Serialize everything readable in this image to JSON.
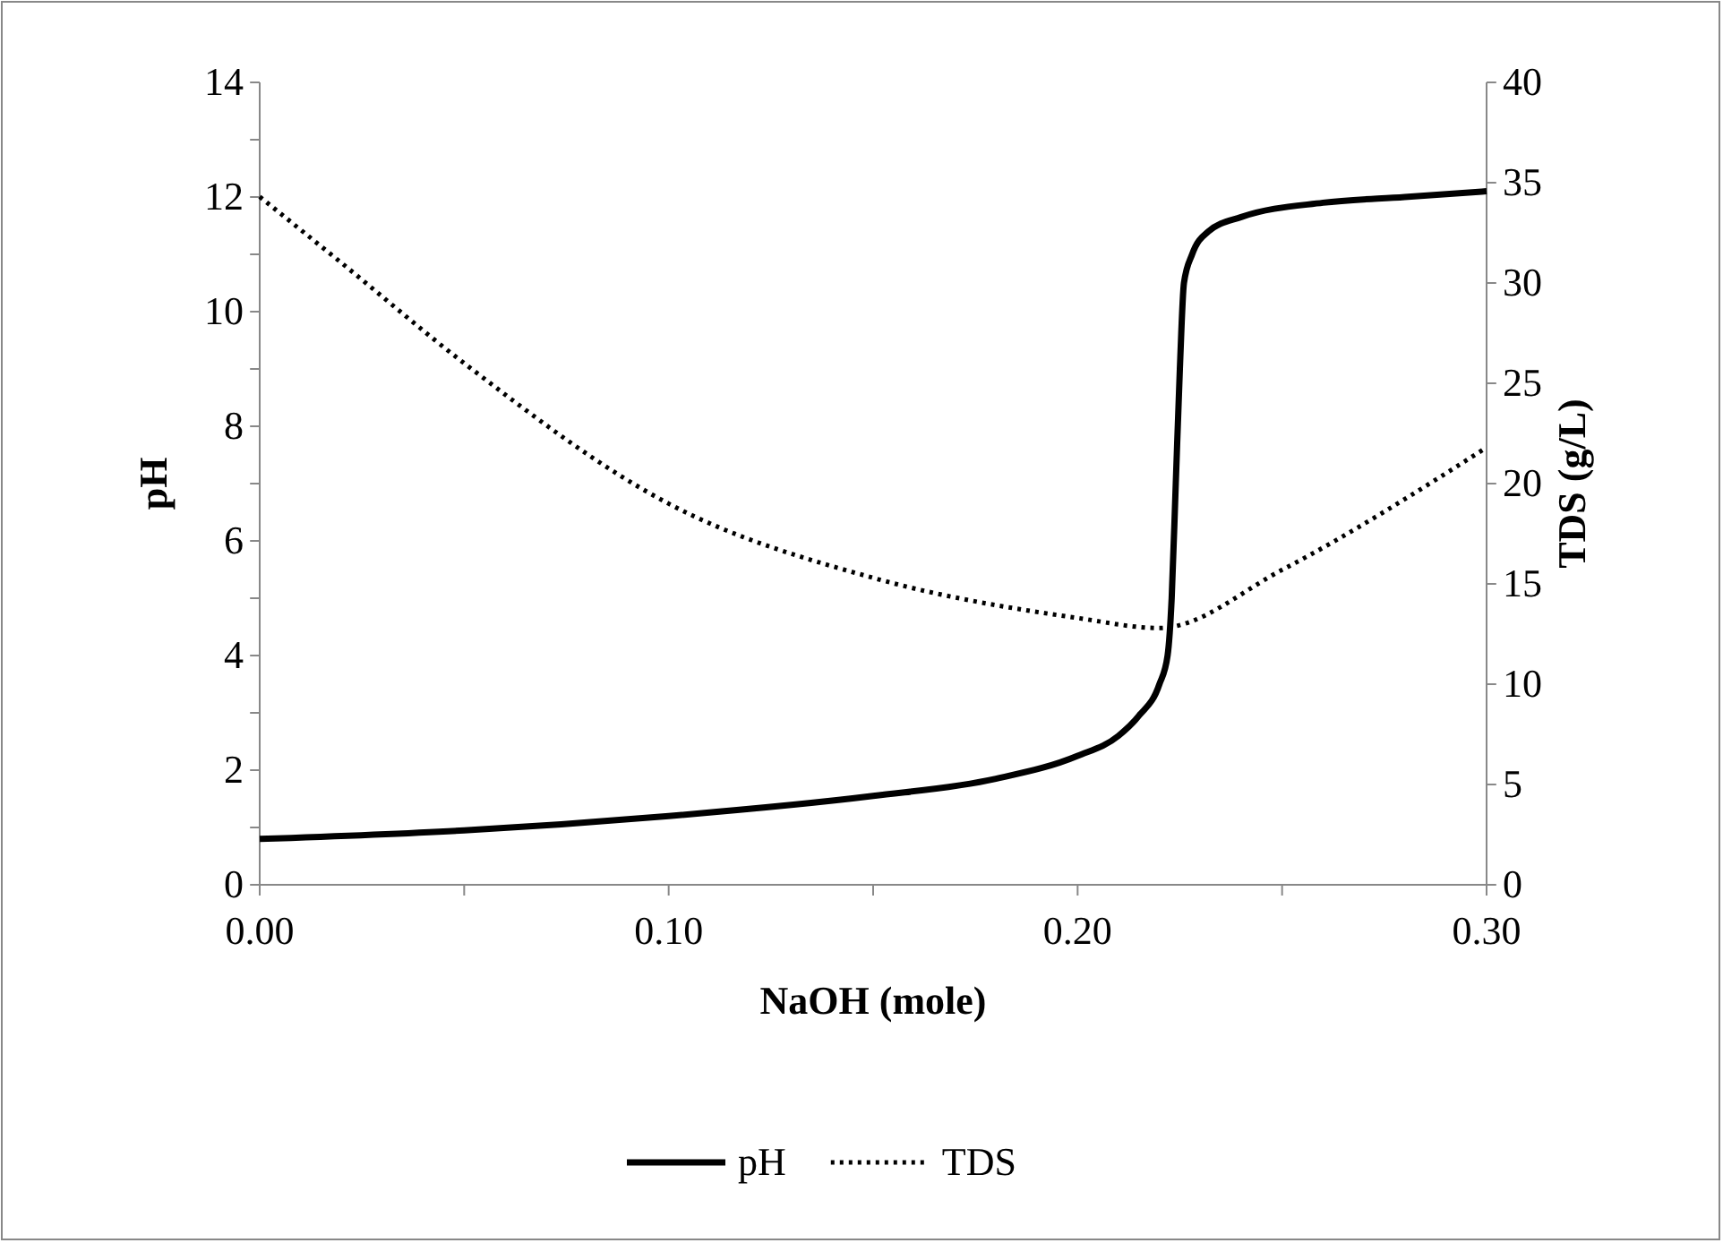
{
  "chart_data": {
    "type": "line",
    "xlabel": "NaOH (mole)",
    "ylabel": "pH",
    "y2label": "TDS (g/L)",
    "xlim": [
      0,
      0.3
    ],
    "xticks": [
      {
        "value": 0,
        "label": "0.00"
      },
      {
        "value": 0.05,
        "label": null
      },
      {
        "value": 0.1,
        "label": "0.10"
      },
      {
        "value": 0.15,
        "label": null
      },
      {
        "value": 0.2,
        "label": "0.20"
      },
      {
        "value": 0.25,
        "label": null
      },
      {
        "value": 0.3,
        "label": "0.30"
      }
    ],
    "ylim": [
      0,
      14
    ],
    "yticks": [
      0,
      {
        "value": 1,
        "label": null
      },
      2,
      {
        "value": 3,
        "label": null
      },
      4,
      {
        "value": 5,
        "label": null
      },
      6,
      {
        "value": 7,
        "label": null
      },
      8,
      {
        "value": 9,
        "label": null
      },
      10,
      {
        "value": 11,
        "label": null
      },
      12,
      {
        "value": 13,
        "label": null
      },
      14
    ],
    "y2lim": [
      0,
      40
    ],
    "y2ticks": [
      0,
      5,
      10,
      15,
      20,
      25,
      30,
      35,
      40
    ],
    "legend": "bottom",
    "grid": false,
    "series": [
      {
        "name": "pH",
        "color": "#000000",
        "line_style": "solid",
        "x": [
          0,
          0.05,
          0.1,
          0.15,
          0.18,
          0.2,
          0.21,
          0.215,
          0.22,
          0.222,
          0.223,
          0.224,
          0.225,
          0.226,
          0.228,
          0.232,
          0.24,
          0.26,
          0.28,
          0.3
        ],
        "values": [
          0.8,
          0.95,
          1.2,
          1.55,
          1.85,
          2.25,
          2.6,
          2.95,
          3.5,
          4.0,
          5.0,
          7.0,
          9.0,
          10.5,
          11.0,
          11.4,
          11.65,
          11.9,
          12.0,
          12.1
        ]
      },
      {
        "name": "TDS",
        "color": "#000000",
        "line_style": "dotted",
        "axis": "y2",
        "x": [
          0,
          0.02,
          0.05,
          0.1,
          0.15,
          0.2,
          0.22,
          0.25,
          0.3
        ],
        "values": [
          34.3,
          31,
          26,
          19,
          15.3,
          13.3,
          12.8,
          15.7,
          21.8
        ]
      }
    ]
  }
}
